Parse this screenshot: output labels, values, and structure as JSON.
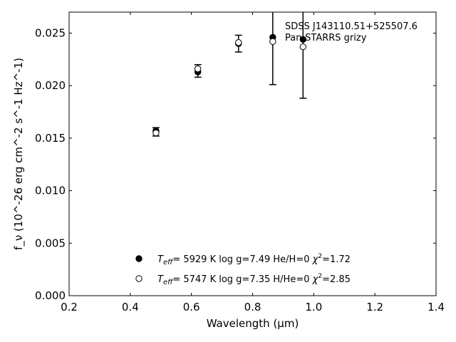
{
  "chart_data": {
    "type": "scatter",
    "xlabel": "Wavelength (μm)",
    "ylabel": "f_ν (10^-26 erg cm^-2 s^-1 Hz^-1)",
    "xlim": [
      0.2,
      1.4
    ],
    "ylim": [
      0.0,
      0.027
    ],
    "x_ticks": [
      "0.2",
      "0.4",
      "0.6",
      "0.8",
      "1.0",
      "1.2",
      "1.4"
    ],
    "y_ticks": [
      "0.000",
      "0.005",
      "0.010",
      "0.015",
      "0.020",
      "0.025"
    ],
    "grid": false,
    "annotation": {
      "object": "SDSS J143110.51+525507.6",
      "photometry": "Pan-STARRS grizy"
    },
    "legend_position": "lower-center",
    "observed": {
      "x": [
        0.484,
        0.621,
        0.754,
        0.866,
        0.965
      ],
      "y": [
        0.0156,
        0.0214,
        0.024,
        0.0246,
        0.0244
      ],
      "yerr": [
        0.0004,
        0.0006,
        0.0008,
        0.0045,
        0.0056
      ]
    },
    "series": [
      {
        "name": "T_eff= 5929 K log g=7.49 He/H=0 χ2=1.72",
        "teff": "5929 K",
        "logg": "7.49",
        "comp": "He/H=0",
        "chi2": "1.72",
        "marker": "filled",
        "x": [
          0.484,
          0.621,
          0.754,
          0.866,
          0.965
        ],
        "y": [
          0.0157,
          0.0213,
          0.024,
          0.0246,
          0.0244
        ]
      },
      {
        "name": "T_eff= 5747 K log g=7.35 H/He=0 χ2=2.85",
        "teff": "5747 K",
        "logg": "7.35",
        "comp": "H/He=0",
        "chi2": "2.85",
        "marker": "open",
        "x": [
          0.484,
          0.621,
          0.754,
          0.866,
          0.965
        ],
        "y": [
          0.0155,
          0.0216,
          0.0241,
          0.0242,
          0.0237
        ]
      }
    ]
  }
}
